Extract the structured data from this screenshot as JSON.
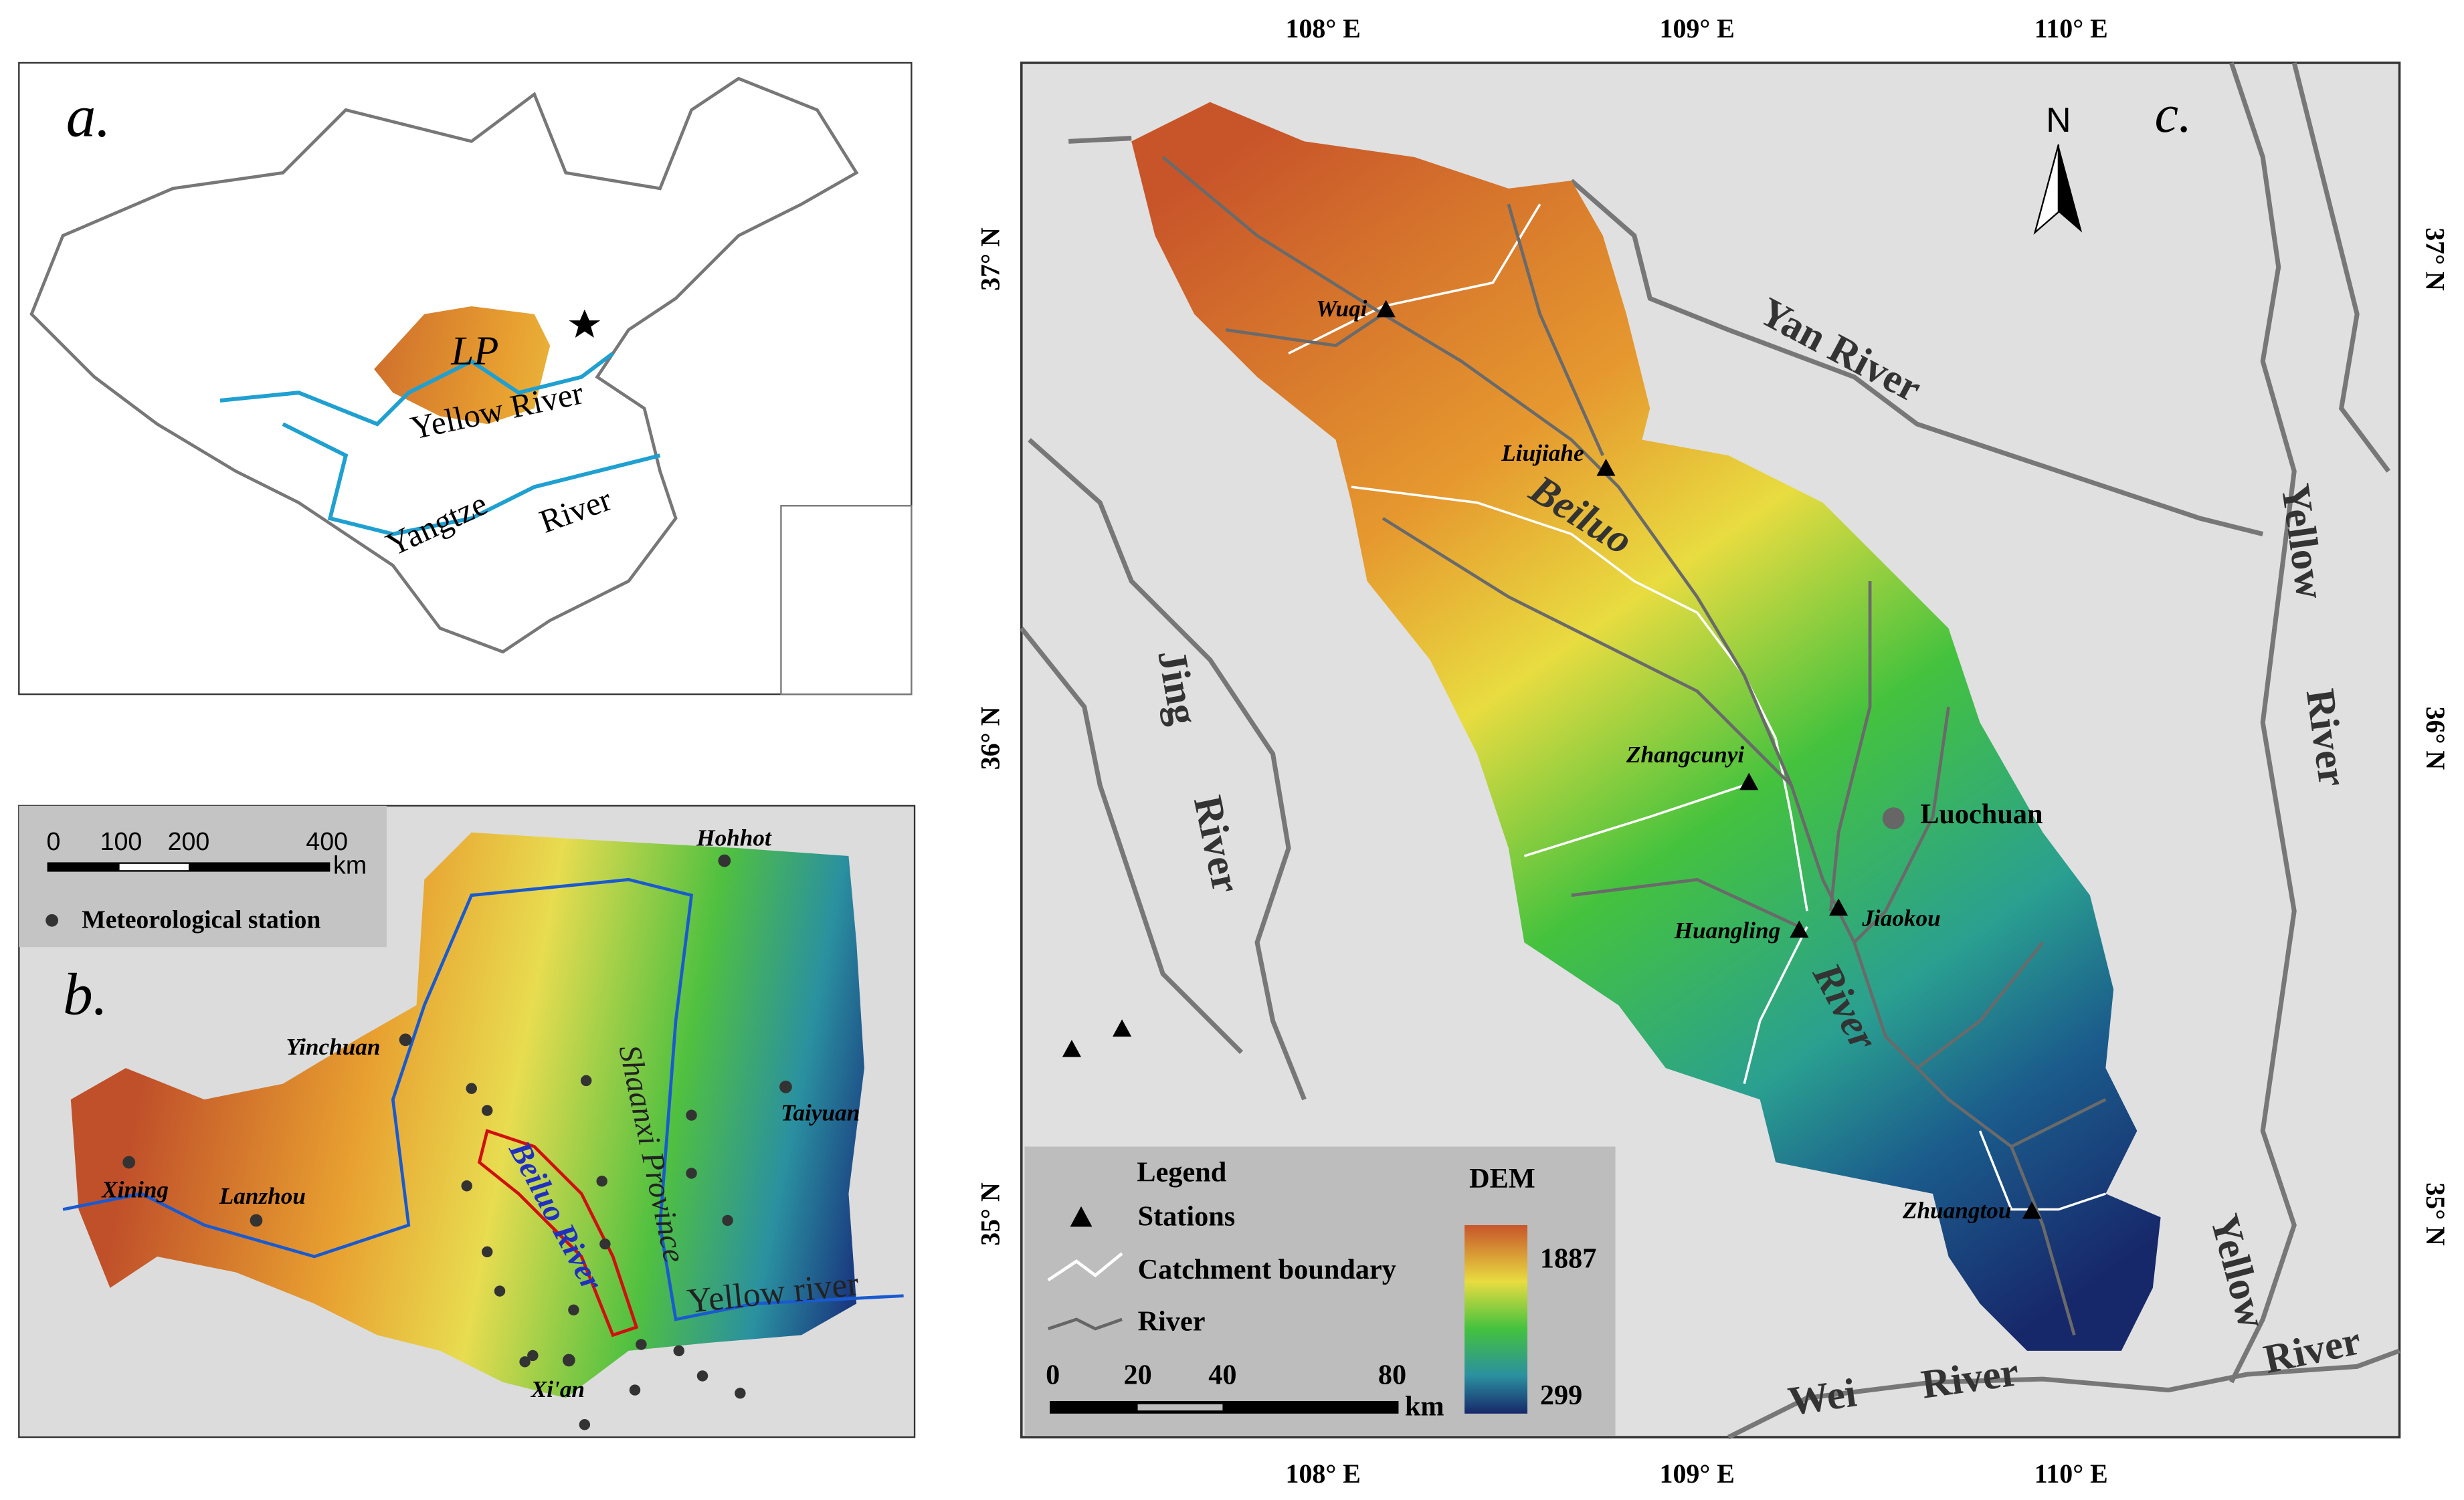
{
  "panel_a": {
    "label": "a.",
    "plateau_label": "LP",
    "yellow_river": "Yellow River",
    "yangtze": [
      "Yangtze",
      "River"
    ]
  },
  "panel_b": {
    "label": "b.",
    "scale_ticks": [
      0,
      100,
      200,
      400
    ],
    "scale_unit": "km",
    "legend_station": "Meteorological station",
    "cities": [
      "Hohhot",
      "Yinchuan",
      "Taiyuan",
      "Xining",
      "Lanzhou",
      "Xi'an"
    ],
    "province": "Shaanxi Province",
    "beiluo": "Beiluo River",
    "yellow": "Yellow river"
  },
  "panel_c": {
    "label": "c.",
    "north": "N",
    "lon_labels": [
      "108° E",
      "109° E",
      "110° E"
    ],
    "lat_labels": [
      "37° N",
      "36° N",
      "35° N"
    ],
    "rivers": {
      "yan": "Yan River",
      "yellow_upper": [
        "Yellow",
        "River"
      ],
      "yellow_lower": [
        "Yellow",
        "River"
      ],
      "jing": [
        "Jing",
        "River"
      ],
      "wei": [
        "Wei",
        "River"
      ],
      "beiluo": [
        "Beiluo",
        "River"
      ]
    },
    "stations": [
      "Wuqi",
      "Liujiahe",
      "Zhangcunyi",
      "Jiaokou",
      "Huangling",
      "Zhuangtou"
    ],
    "city": "Luochuan",
    "legend": {
      "title": "Legend",
      "stations": "Stations",
      "boundary": "Catchment boundary",
      "river": "River",
      "dem": "DEM",
      "dem_max": 1887,
      "dem_min": 299,
      "scale_ticks": [
        0,
        20,
        40,
        80
      ],
      "scale_unit": "km"
    }
  }
}
